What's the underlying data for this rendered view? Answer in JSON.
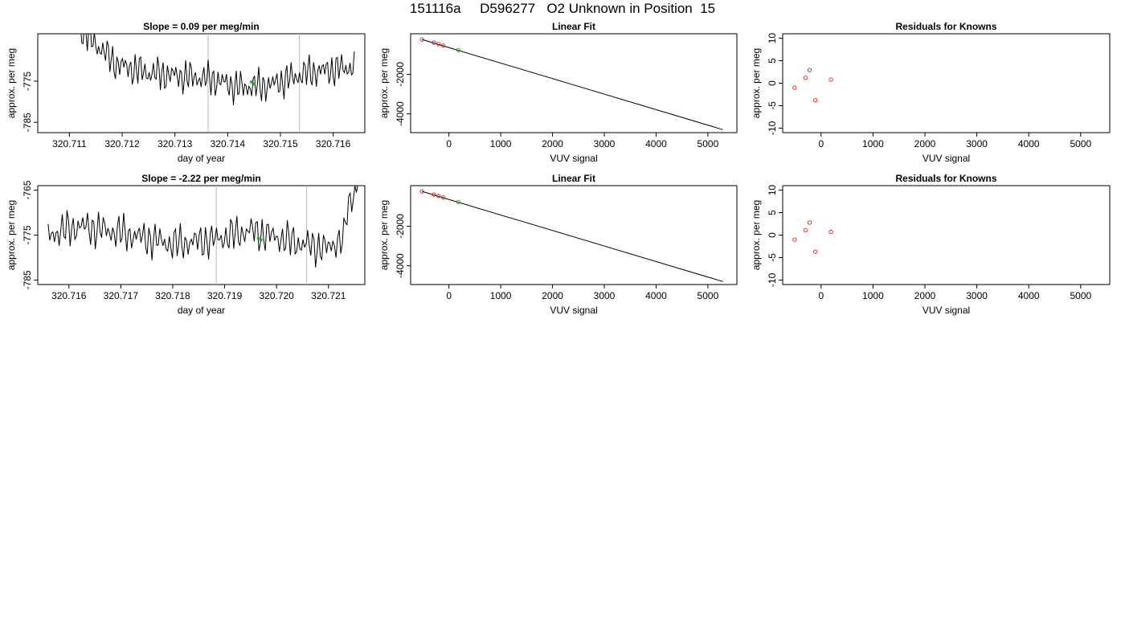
{
  "title": "151116a     D596277   O2 Unknown in Position  15",
  "colors": {
    "line": "#000000",
    "vline": "#bbbbbb",
    "known_point": "#cc2222",
    "unknown_point": "#22aa22"
  },
  "chart_data": [
    {
      "type": "line",
      "title": "Slope =  0.09  per meg/min",
      "xlabel": "day of year",
      "ylabel": "approx. per meg",
      "xlim": [
        320.7104,
        320.7166
      ],
      "ylim": [
        -787.5,
        -763.5
      ],
      "xticks": [
        "320.711",
        "320.712",
        "320.713",
        "320.714",
        "320.715",
        "320.716"
      ],
      "yticks": [
        "-785",
        "-775"
      ],
      "vlines": [
        320.71363,
        320.71536
      ],
      "trace": {
        "x_start": 320.7111,
        "x_end": 320.7164,
        "n": 200,
        "base": -773.5,
        "drift": [
          [
            320.7111,
            -761
          ],
          [
            320.7119,
            -771
          ],
          [
            320.7125,
            -773
          ],
          [
            320.7137,
            -774.5
          ],
          [
            320.7142,
            -776.5
          ],
          [
            320.7148,
            -776
          ],
          [
            320.7155,
            -773
          ],
          [
            320.7164,
            -771.5
          ]
        ]
      },
      "unknown_points": [
        {
          "x": 320.71445,
          "y": -775.2
        },
        {
          "x": 320.7145,
          "y": -775.7
        }
      ]
    },
    {
      "type": "scatter",
      "title": "Linear Fit",
      "xlabel": "VUV signal",
      "ylabel": "approx. per meg",
      "xlim": [
        -740,
        5560
      ],
      "ylim": [
        -4950,
        50
      ],
      "xticks": [
        "0",
        "1000",
        "2000",
        "3000",
        "4000",
        "5000"
      ],
      "yticks": [
        "-4000",
        "-2000"
      ],
      "fit_line": {
        "x": [
          -520,
          5290
        ],
        "y": [
          -240,
          -4800
        ]
      },
      "known_points": {
        "x": [
          -520,
          -290,
          -200,
          -110
        ],
        "y": [
          -240,
          -400,
          -470,
          -550
        ]
      },
      "unknown_points": {
        "x": [
          180
        ],
        "y": [
          -775
        ]
      }
    },
    {
      "type": "scatter",
      "title": "Residuals for Knowns",
      "xlabel": "VUV signal",
      "ylabel": "approx. per meg",
      "xlim": [
        -740,
        5560
      ],
      "ylim": [
        -11,
        11
      ],
      "xticks": [
        "0",
        "1000",
        "2000",
        "3000",
        "4000",
        "5000"
      ],
      "yticks": [
        "-10",
        "-5",
        "0",
        "5",
        "10"
      ],
      "known_points": {
        "x": [
          -510,
          -300,
          -220,
          -110,
          190
        ],
        "y": [
          -1,
          1.2,
          2.9,
          -3.8,
          0.8
        ]
      }
    },
    {
      "type": "line",
      "title": "Slope =  -2.22  per meg/min",
      "xlabel": "day of year",
      "ylabel": "approx. per meg",
      "xlim": [
        320.7154,
        320.7217
      ],
      "ylim": [
        -786,
        -764
      ],
      "xticks": [
        "320.716",
        "320.717",
        "320.718",
        "320.719",
        "320.720",
        "320.721"
      ],
      "yticks": [
        "-785",
        "-775",
        "-765"
      ],
      "vlines": [
        320.71884,
        320.72058
      ],
      "trace": {
        "x_start": 320.7156,
        "x_end": 320.72163,
        "n": 200,
        "base": -774,
        "drift": [
          [
            320.7156,
            -775
          ],
          [
            320.7162,
            -773
          ],
          [
            320.717,
            -774.5
          ],
          [
            320.718,
            -777
          ],
          [
            320.7188,
            -776
          ],
          [
            320.7195,
            -774
          ],
          [
            320.7205,
            -777
          ],
          [
            320.721,
            -778
          ],
          [
            320.7212,
            -776
          ],
          [
            320.7213,
            -776
          ],
          [
            320.72135,
            -770
          ],
          [
            320.72163,
            -761
          ]
        ]
      },
      "unknown_points": [
        {
          "x": 320.71965,
          "y": -775.7
        },
        {
          "x": 320.7197,
          "y": -776.1
        }
      ]
    },
    {
      "type": "scatter",
      "title": "Linear Fit",
      "xlabel": "VUV signal",
      "ylabel": "approx. per meg",
      "xlim": [
        -740,
        5560
      ],
      "ylim": [
        -4950,
        50
      ],
      "xticks": [
        "0",
        "1000",
        "2000",
        "3000",
        "4000",
        "5000"
      ],
      "yticks": [
        "-4000",
        "-2000"
      ],
      "fit_line": {
        "x": [
          -520,
          5290
        ],
        "y": [
          -240,
          -4800
        ]
      },
      "known_points": {
        "x": [
          -520,
          -290,
          -200,
          -110
        ],
        "y": [
          -240,
          -400,
          -470,
          -550
        ]
      },
      "unknown_points": {
        "x": [
          180
        ],
        "y": [
          -775
        ]
      }
    },
    {
      "type": "scatter",
      "title": "Residuals for Knowns",
      "xlabel": "VUV signal",
      "ylabel": "approx. per meg",
      "xlim": [
        -740,
        5560
      ],
      "ylim": [
        -11,
        11
      ],
      "xticks": [
        "0",
        "1000",
        "2000",
        "3000",
        "4000",
        "5000"
      ],
      "yticks": [
        "-10",
        "-5",
        "0",
        "5",
        "10"
      ],
      "known_points": {
        "x": [
          -510,
          -300,
          -220,
          -110,
          190
        ],
        "y": [
          -1,
          1.1,
          2.8,
          -3.7,
          0.7
        ]
      }
    }
  ]
}
